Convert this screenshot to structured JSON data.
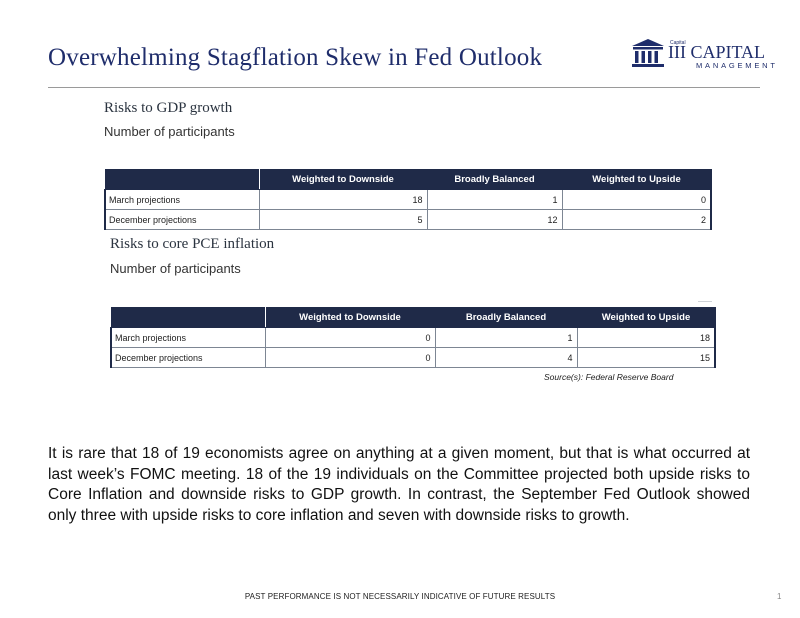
{
  "slide": {
    "title": "Overwhelming Stagflation Skew in Fed Outlook",
    "logo": {
      "small": "Capital",
      "name": "III CAPITAL",
      "sub": "MANAGEMENT"
    },
    "footer": {
      "disclaimer": "PAST PERFORMANCE IS NOT NECESSARILY INDICATIVE OF FUTURE RESULTS",
      "page_number": "1"
    }
  },
  "gdp": {
    "title": "Risks to GDP growth",
    "subtitle": "Number of participants",
    "columns": [
      "Weighted to Downside",
      "Broadly Balanced",
      "Weighted to Upside"
    ],
    "rows": [
      {
        "label": "March projections",
        "values": [
          "18",
          "1",
          "0"
        ]
      },
      {
        "label": "December projections",
        "values": [
          "5",
          "12",
          "2"
        ]
      }
    ]
  },
  "pce": {
    "title": "Risks to core PCE inflation",
    "subtitle": "Number of participants",
    "columns": [
      "Weighted to Downside",
      "Broadly Balanced",
      "Weighted to Upside"
    ],
    "rows": [
      {
        "label": "March projections",
        "values": [
          "0",
          "1",
          "18"
        ]
      },
      {
        "label": "December projections",
        "values": [
          "0",
          "4",
          "15"
        ]
      }
    ],
    "source": "Source(s): Federal Reserve Board"
  },
  "commentary": "It is rare that 18 of 19 economists agree on anything at a given moment, but that is what occurred at last week’s FOMC meeting. 18 of the 19 individuals on the Committee projected both upside risks to Core Inflation and downside risks to GDP growth. In contrast, the September Fed Outlook showed only three with upside risks to core inflation and seven with downside risks to growth."
}
